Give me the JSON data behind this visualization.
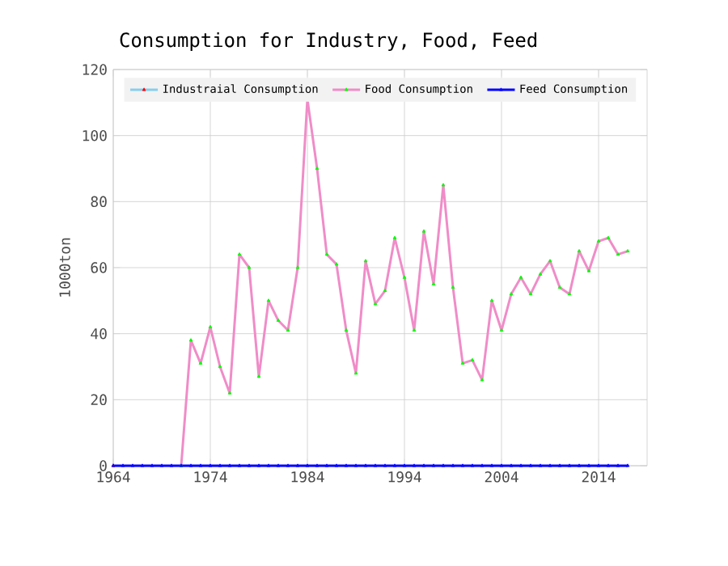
{
  "chart_data": {
    "type": "line",
    "title": "Consumption for Industry, Food, Feed",
    "ylabel": "1000ton",
    "x": [
      1964,
      1965,
      1966,
      1967,
      1968,
      1969,
      1970,
      1971,
      1972,
      1973,
      1974,
      1975,
      1976,
      1977,
      1978,
      1979,
      1980,
      1981,
      1982,
      1983,
      1984,
      1985,
      1986,
      1987,
      1988,
      1989,
      1990,
      1991,
      1992,
      1993,
      1994,
      1995,
      1996,
      1997,
      1998,
      1999,
      2000,
      2001,
      2002,
      2003,
      2004,
      2005,
      2006,
      2007,
      2008,
      2009,
      2010,
      2011,
      2012,
      2013,
      2014,
      2015,
      2016,
      2017
    ],
    "series": [
      {
        "name": "Industraial Consumption",
        "color": "#ff0000",
        "values": [
          0,
          null,
          null,
          null,
          null,
          null,
          null,
          null,
          null,
          null,
          null,
          null,
          null,
          null,
          null,
          null,
          null,
          null,
          null,
          null,
          null,
          null,
          null,
          null,
          null,
          null,
          null,
          null,
          null,
          null,
          null,
          null,
          null,
          null,
          null,
          null,
          null,
          null,
          null,
          null,
          null,
          null,
          null,
          null,
          null,
          null,
          null,
          null,
          null,
          null,
          null,
          null,
          null,
          null
        ]
      },
      {
        "name": "Food Consumption",
        "color": "#00ff00",
        "values": [
          null,
          null,
          null,
          null,
          null,
          null,
          null,
          0,
          38,
          31,
          42,
          30,
          22,
          64,
          60,
          27,
          50,
          44,
          41,
          60,
          111,
          90,
          64,
          61,
          41,
          28,
          62,
          49,
          53,
          69,
          57,
          41,
          71,
          55,
          85,
          54,
          31,
          32,
          26,
          50,
          41,
          52,
          57,
          52,
          58,
          62,
          54,
          52,
          65,
          59,
          68,
          69,
          64,
          65
        ]
      },
      {
        "name": "Feed Consumption",
        "color": "#0000ff",
        "values": [
          0,
          0,
          0,
          0,
          0,
          0,
          0,
          0,
          0,
          0,
          0,
          0,
          0,
          0,
          0,
          0,
          0,
          0,
          0,
          0,
          0,
          0,
          0,
          0,
          0,
          0,
          0,
          0,
          0,
          0,
          0,
          0,
          0,
          0,
          0,
          0,
          0,
          0,
          0,
          0,
          0,
          0,
          0,
          0,
          0,
          0,
          0,
          0,
          0,
          0,
          0,
          0,
          0,
          0
        ]
      }
    ],
    "xlim": [
      1964,
      2019
    ],
    "ylim": [
      0,
      120
    ],
    "xticks": [
      1964,
      1974,
      1984,
      1994,
      2004,
      2014
    ],
    "yticks": [
      0,
      20,
      40,
      60,
      80,
      100,
      120
    ],
    "grid": true,
    "legend": "top",
    "marker": "triangle",
    "line_style": "solid"
  }
}
